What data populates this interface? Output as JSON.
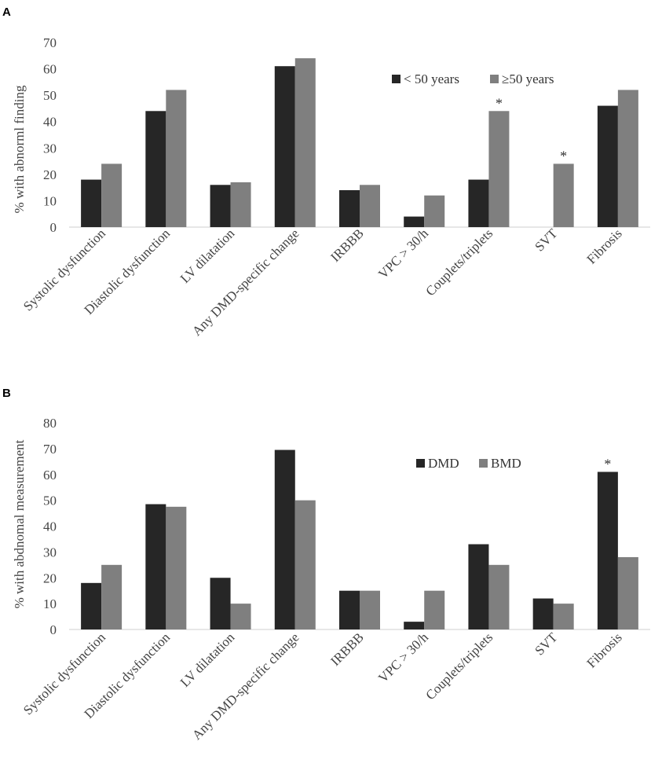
{
  "chart_data": [
    {
      "panel": "A",
      "type": "bar",
      "ylabel": "% with abnorml finding",
      "ylim": [
        0,
        70
      ],
      "yticks": [
        0,
        10,
        20,
        30,
        40,
        50,
        60,
        70
      ],
      "categories": [
        "Systolic dysfunction",
        "Diastolic dysfunction",
        "LV dilatation",
        "Any DMD-specific change",
        "IRBBB",
        "VPC > 30/h",
        "Couplets/triplets",
        "SVT",
        "Fibrosis"
      ],
      "series": [
        {
          "name": "< 50 years",
          "color": "#262626",
          "values": [
            18,
            44,
            16,
            61,
            14,
            4,
            18,
            0,
            46
          ]
        },
        {
          "name": "≥50 years",
          "color": "#7f7f7f",
          "values": [
            24,
            52,
            17,
            64,
            16,
            12,
            44,
            24,
            52
          ]
        }
      ],
      "significance": [
        {
          "category": "Couplets/triplets",
          "series": 1,
          "mark": "*"
        },
        {
          "category": "SVT",
          "series": 1,
          "mark": "*"
        }
      ],
      "legend": "top-right"
    },
    {
      "panel": "B",
      "type": "bar",
      "ylabel": "% with abdnomal measurement",
      "ylim": [
        0,
        80
      ],
      "yticks": [
        0,
        10,
        20,
        30,
        40,
        50,
        60,
        70,
        80
      ],
      "categories": [
        "Systolic dysfunction",
        "Diastolic dysfunction",
        "LV dilatation",
        "Any DMD-specific change",
        "IRBBB",
        "VPC > 30/h",
        "Couplets/triplets",
        "SVT",
        "Fibrosis"
      ],
      "series": [
        {
          "name": "DMD",
          "color": "#262626",
          "values": [
            18,
            48.5,
            20,
            69.5,
            15,
            3,
            33,
            12,
            61
          ]
        },
        {
          "name": "BMD",
          "color": "#7f7f7f",
          "values": [
            25,
            47.5,
            10,
            50,
            15,
            15,
            25,
            10,
            28
          ]
        }
      ],
      "significance": [
        {
          "category": "Fibrosis",
          "series": 0,
          "mark": "*"
        }
      ],
      "legend": "top-right"
    }
  ]
}
